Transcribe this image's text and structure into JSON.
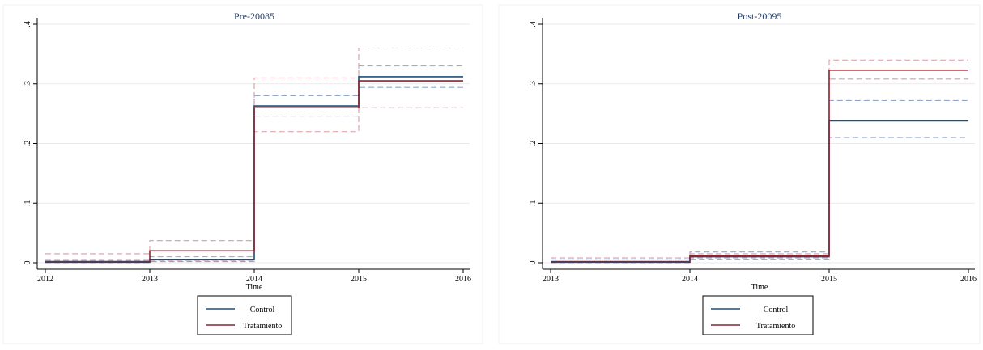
{
  "colors": {
    "control": "#1f4e79",
    "tratamiento": "#8b2331",
    "control_ci": "#8fa8c8",
    "tratamiento_ci": "#d99aa3",
    "grid": "#eaeaea"
  },
  "chart_data": [
    {
      "type": "line",
      "step": true,
      "title": "Pre-20085",
      "xlabel": "Time",
      "ylabel": "",
      "xlim": [
        2012,
        2016
      ],
      "ylim": [
        0,
        0.4
      ],
      "xticks": [
        "2012",
        "2013",
        "2014",
        "2015",
        "2016"
      ],
      "yticks": [
        "0",
        ".1",
        ".2",
        ".3",
        ".4"
      ],
      "grid": true,
      "legend_position": "bottom-center",
      "series": [
        {
          "name": "Control",
          "key": "control",
          "style": "solid",
          "x": [
            2012,
            2013,
            2014,
            2015,
            2016
          ],
          "y": [
            0.001,
            0.005,
            0.263,
            0.312,
            0.312
          ]
        },
        {
          "name": "Tratamiento",
          "key": "tratamiento",
          "style": "solid",
          "x": [
            2012,
            2013,
            2014,
            2015,
            2016
          ],
          "y": [
            0.002,
            0.02,
            0.26,
            0.305,
            0.305
          ]
        },
        {
          "name": "",
          "key": "control_ci",
          "style": "dashed",
          "x": [
            2012,
            2013,
            2014,
            2015,
            2016
          ],
          "y": [
            0.004,
            0.01,
            0.28,
            0.33,
            0.33
          ]
        },
        {
          "name": "",
          "key": "control_ci",
          "style": "dashed",
          "x": [
            2012,
            2013,
            2014,
            2015,
            2016
          ],
          "y": [
            0.0,
            0.002,
            0.246,
            0.294,
            0.294
          ]
        },
        {
          "name": "",
          "key": "tratamiento_ci",
          "style": "dashed",
          "x": [
            2012,
            2013,
            2014,
            2015,
            2016
          ],
          "y": [
            0.015,
            0.037,
            0.31,
            0.36,
            0.36
          ]
        },
        {
          "name": "",
          "key": "tratamiento_ci",
          "style": "dashed",
          "x": [
            2012,
            2013,
            2014,
            2015,
            2016
          ],
          "y": [
            0.0,
            0.004,
            0.22,
            0.26,
            0.26
          ]
        }
      ]
    },
    {
      "type": "line",
      "step": true,
      "title": "Post-20095",
      "xlabel": "Time",
      "ylabel": "",
      "xlim": [
        2013,
        2016
      ],
      "ylim": [
        0,
        0.4
      ],
      "xticks": [
        "2013",
        "2014",
        "2015",
        "2016"
      ],
      "yticks": [
        "0",
        ".1",
        ".2",
        ".3",
        ".4"
      ],
      "grid": true,
      "legend_position": "bottom-center",
      "series": [
        {
          "name": "Control",
          "key": "control",
          "style": "solid",
          "x": [
            2013,
            2014,
            2015,
            2016
          ],
          "y": [
            0.001,
            0.01,
            0.238,
            0.238
          ]
        },
        {
          "name": "Tratamiento",
          "key": "tratamiento",
          "style": "solid",
          "x": [
            2013,
            2014,
            2015,
            2016
          ],
          "y": [
            0.002,
            0.012,
            0.323,
            0.323
          ]
        },
        {
          "name": "",
          "key": "control_ci",
          "style": "dashed",
          "x": [
            2013,
            2014,
            2015,
            2016
          ],
          "y": [
            0.006,
            0.018,
            0.272,
            0.272
          ]
        },
        {
          "name": "",
          "key": "control_ci",
          "style": "dashed",
          "x": [
            2013,
            2014,
            2015,
            2016
          ],
          "y": [
            0.0,
            0.005,
            0.21,
            0.21
          ]
        },
        {
          "name": "",
          "key": "tratamiento_ci",
          "style": "dashed",
          "x": [
            2013,
            2014,
            2015,
            2016
          ],
          "y": [
            0.008,
            0.015,
            0.34,
            0.34
          ]
        },
        {
          "name": "",
          "key": "tratamiento_ci",
          "style": "dashed",
          "x": [
            2013,
            2014,
            2015,
            2016
          ],
          "y": [
            0.0,
            0.008,
            0.308,
            0.308
          ]
        }
      ]
    }
  ]
}
